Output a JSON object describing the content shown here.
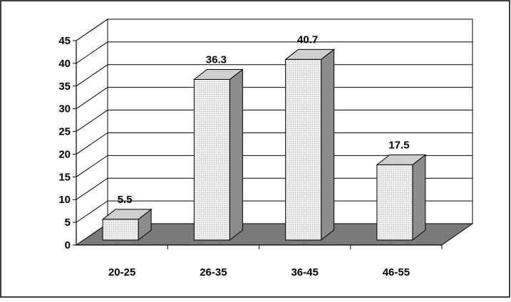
{
  "chart_data": {
    "type": "bar",
    "style": "3d-column",
    "categories": [
      "20-25",
      "26-35",
      "36-45",
      "46-55"
    ],
    "values": [
      5.5,
      36.3,
      40.7,
      17.5
    ],
    "data_labels": [
      "5.5",
      "36.3",
      "40.7",
      "17.5"
    ],
    "ylim": [
      0,
      45
    ],
    "y_ticks": [
      "0",
      "5",
      "10",
      "15",
      "20",
      "25",
      "30",
      "35",
      "40",
      "45"
    ],
    "title": "",
    "xlabel": "",
    "ylabel": "",
    "grid": true,
    "legend": "none",
    "colors": {
      "bar_front": "#e6e6e6",
      "bar_side": "#8c8c8c",
      "bar_top": "#cfcfcf",
      "floor": "#7a7a7a",
      "gridline": "#000000"
    }
  }
}
